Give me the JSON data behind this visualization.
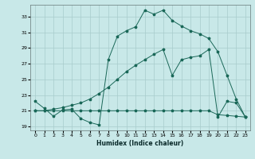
{
  "xlabel": "Humidex (Indice chaleur)",
  "bg_color": "#c8e8e8",
  "grid_color": "#a8cccc",
  "line_color": "#1a6858",
  "xlim": [
    -0.5,
    23.5
  ],
  "ylim": [
    18.5,
    34.5
  ],
  "xticks": [
    0,
    1,
    2,
    3,
    4,
    5,
    6,
    7,
    8,
    9,
    10,
    11,
    12,
    13,
    14,
    15,
    16,
    17,
    18,
    19,
    20,
    21,
    22,
    23
  ],
  "yticks": [
    19,
    21,
    23,
    25,
    27,
    29,
    31,
    33
  ],
  "s1_x": [
    0,
    1,
    2,
    3,
    4,
    5,
    6,
    7,
    8,
    9,
    10,
    11,
    12,
    13,
    14,
    15,
    16,
    17,
    18,
    19,
    20,
    21,
    22,
    23
  ],
  "s1_y": [
    22.2,
    21.3,
    20.3,
    21.1,
    21.2,
    20.0,
    19.5,
    19.2,
    27.5,
    30.5,
    31.2,
    31.7,
    33.8,
    33.3,
    33.8,
    32.5,
    31.8,
    31.2,
    30.8,
    30.2,
    28.5,
    25.5,
    22.5,
    20.2
  ],
  "s2_x": [
    0,
    1,
    2,
    3,
    4,
    5,
    6,
    7,
    8,
    9,
    10,
    11,
    12,
    13,
    14,
    15,
    16,
    17,
    18,
    19,
    20,
    21,
    22,
    23
  ],
  "s2_y": [
    21.0,
    21.0,
    21.0,
    21.0,
    21.0,
    21.0,
    21.0,
    21.0,
    21.0,
    21.0,
    21.0,
    21.0,
    21.0,
    21.0,
    21.0,
    21.0,
    21.0,
    21.0,
    21.0,
    21.0,
    20.5,
    20.4,
    20.3,
    20.2
  ],
  "s3_x": [
    0,
    1,
    2,
    3,
    4,
    5,
    6,
    7,
    8,
    9,
    10,
    11,
    12,
    13,
    14,
    15,
    16,
    17,
    18,
    19,
    20,
    21,
    22,
    23
  ],
  "s3_y": [
    21.0,
    21.0,
    21.2,
    21.4,
    21.7,
    22.0,
    22.5,
    23.2,
    24.0,
    25.0,
    26.0,
    26.8,
    27.5,
    28.2,
    28.8,
    25.5,
    27.5,
    27.8,
    28.0,
    28.8,
    20.2,
    22.2,
    22.0,
    20.2
  ]
}
